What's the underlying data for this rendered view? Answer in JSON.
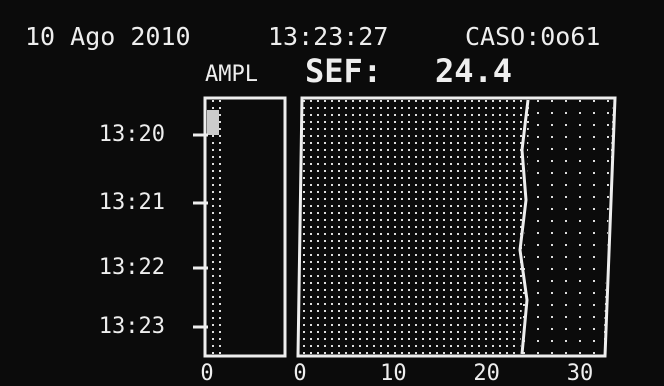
{
  "header": {
    "date": "10 Ago 2010",
    "time": "13:23:27",
    "case": "CASO:0o61"
  },
  "ampl_label": "AMPL",
  "sef_label": "SEF:",
  "sef_value": "24.4",
  "time_axis": [
    "13:20",
    "13:21",
    "13:22",
    "13:23"
  ],
  "ampl_axis": [
    "0"
  ],
  "freq_axis": [
    "0",
    "10",
    "20",
    "30"
  ]
}
